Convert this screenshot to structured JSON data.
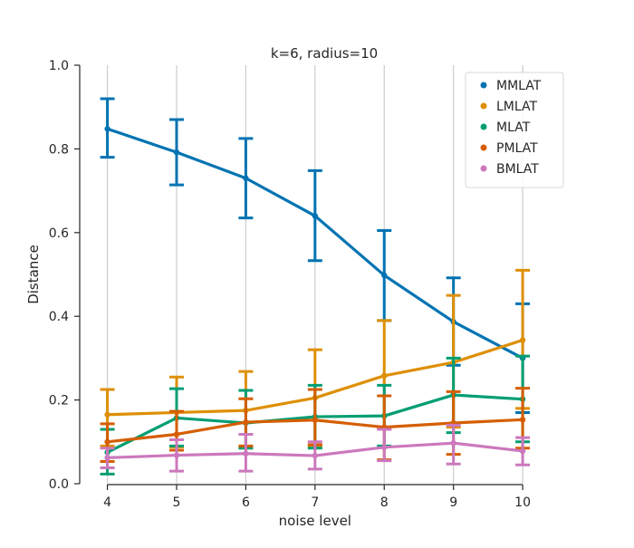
{
  "chart_data": {
    "type": "line",
    "title": "k=6, radius=10",
    "xlabel": "noise level",
    "ylabel": "Distance",
    "x": [
      4,
      5,
      6,
      7,
      8,
      9,
      10
    ],
    "xlim": [
      3.6,
      10.3
    ],
    "ylim": [
      0,
      1
    ],
    "xticks": [
      "4",
      "5",
      "6",
      "7",
      "8",
      "9",
      "10"
    ],
    "yticks": [
      "0.0",
      "0.2",
      "0.4",
      "0.6",
      "0.8",
      "1.0"
    ],
    "grid": "vertical",
    "legend_position": "top-right",
    "series": [
      {
        "name": "MMLAT",
        "color": "#0173b2",
        "values": [
          0.848,
          0.792,
          0.73,
          0.64,
          0.498,
          0.387,
          0.3
        ],
        "err_low": [
          0.78,
          0.714,
          0.635,
          0.533,
          0.39,
          0.283,
          0.17
        ],
        "err_high": [
          0.92,
          0.87,
          0.825,
          0.748,
          0.605,
          0.492,
          0.43
        ]
      },
      {
        "name": "LMLAT",
        "color": "#de8f05",
        "values": [
          0.165,
          0.17,
          0.175,
          0.205,
          0.258,
          0.29,
          0.343
        ],
        "err_low": [
          0.09,
          0.088,
          0.085,
          0.09,
          0.13,
          0.135,
          0.18
        ],
        "err_high": [
          0.225,
          0.255,
          0.268,
          0.32,
          0.39,
          0.45,
          0.51
        ]
      },
      {
        "name": "MLAT",
        "color": "#029e73",
        "values": [
          0.075,
          0.157,
          0.145,
          0.16,
          0.162,
          0.212,
          0.202
        ],
        "err_low": [
          0.023,
          0.09,
          0.085,
          0.085,
          0.09,
          0.122,
          0.1
        ],
        "err_high": [
          0.13,
          0.227,
          0.223,
          0.235,
          0.235,
          0.3,
          0.305
        ]
      },
      {
        "name": "PMLAT",
        "color": "#d55e00",
        "values": [
          0.1,
          0.118,
          0.147,
          0.152,
          0.135,
          0.145,
          0.153
        ],
        "err_low": [
          0.053,
          0.08,
          0.09,
          0.093,
          0.057,
          0.07,
          0.085
        ],
        "err_high": [
          0.143,
          0.173,
          0.203,
          0.225,
          0.21,
          0.22,
          0.228
        ]
      },
      {
        "name": "BMLAT",
        "color": "#cc78bc",
        "values": [
          0.062,
          0.068,
          0.072,
          0.067,
          0.087,
          0.097,
          0.078
        ],
        "err_low": [
          0.038,
          0.03,
          0.03,
          0.035,
          0.055,
          0.047,
          0.045
        ],
        "err_high": [
          0.085,
          0.105,
          0.118,
          0.1,
          0.13,
          0.14,
          0.11
        ]
      }
    ]
  }
}
